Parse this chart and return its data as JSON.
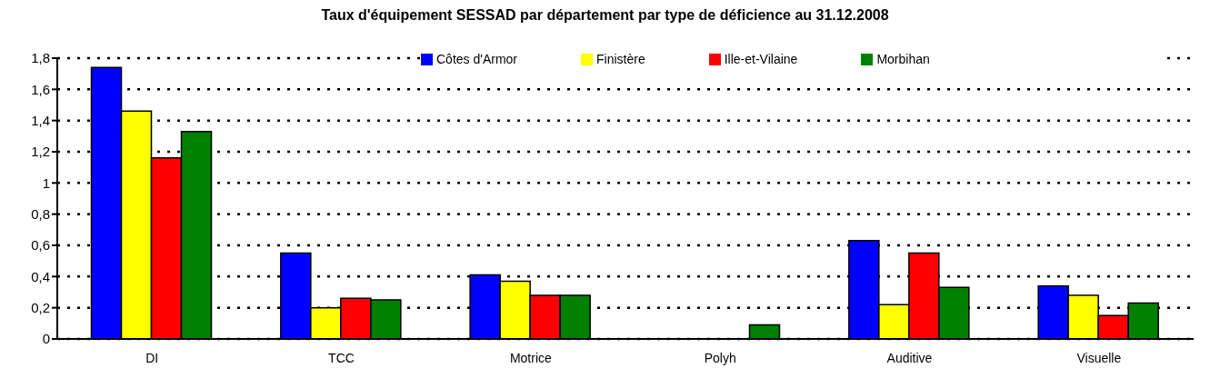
{
  "chart_data": {
    "type": "bar",
    "title": "Taux d'équipement SESSAD par département par type de déficience au 31.12.2008",
    "categories": [
      "DI",
      "TCC",
      "Motrice",
      "Polyh",
      "Auditive",
      "Visuelle"
    ],
    "series": [
      {
        "name": "Côtes d'Armor",
        "color": "#0000ff",
        "values": [
          1.74,
          0.55,
          0.41,
          0,
          0.63,
          0.34
        ]
      },
      {
        "name": "Finistère",
        "color": "#ffff00",
        "values": [
          1.46,
          0.2,
          0.37,
          0,
          0.22,
          0.28
        ]
      },
      {
        "name": "Ille-et-Vilaine",
        "color": "#ff0000",
        "values": [
          1.16,
          0.26,
          0.28,
          0,
          0.55,
          0.15
        ]
      },
      {
        "name": "Morbihan",
        "color": "#008000",
        "values": [
          1.33,
          0.25,
          0.28,
          0.09,
          0.33,
          0.23
        ]
      }
    ],
    "ylim": [
      0,
      1.8
    ],
    "yticks": [
      0,
      {
        "value": 0.2,
        "label": "0,2"
      },
      {
        "value": 0.4,
        "label": "0,4"
      },
      {
        "value": 0.6,
        "label": "0,6"
      },
      {
        "value": 0.8,
        "label": "0,8"
      },
      1,
      {
        "value": 1.2,
        "label": "1,2"
      },
      {
        "value": 1.4,
        "label": "1,4"
      },
      {
        "value": 1.6,
        "label": "1,6"
      },
      {
        "value": 1.8,
        "label": "1,8"
      }
    ],
    "grid": "y",
    "legend": "top right"
  }
}
